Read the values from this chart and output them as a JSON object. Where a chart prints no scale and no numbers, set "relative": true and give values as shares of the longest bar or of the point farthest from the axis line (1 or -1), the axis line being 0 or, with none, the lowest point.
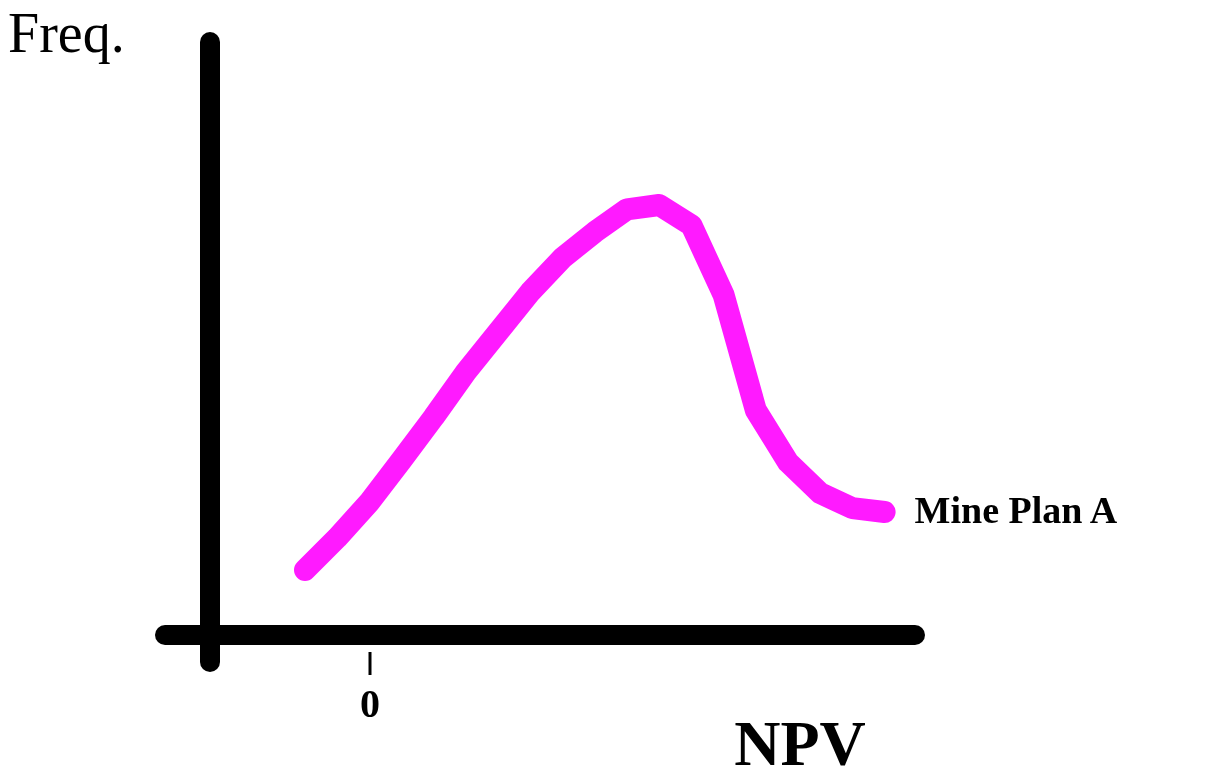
{
  "chart_data": {
    "type": "line",
    "relative": true,
    "xlabel": "NPV",
    "ylabel": "Freq.",
    "annotations": [
      "0"
    ],
    "categories": [
      null,
      null,
      null,
      null,
      null,
      null,
      null,
      null,
      null,
      null,
      null,
      null,
      null,
      null,
      null,
      null,
      null,
      null,
      null
    ],
    "series": [
      {
        "name": "Mine Plan A",
        "color": "#ff1aff",
        "values": [
          0.151,
          0.226,
          0.309,
          0.407,
          0.507,
          0.612,
          0.705,
          0.798,
          0.877,
          0.937,
          0.99,
          1.0,
          0.953,
          0.791,
          0.523,
          0.402,
          0.33,
          0.295,
          0.286
        ]
      }
    ]
  }
}
